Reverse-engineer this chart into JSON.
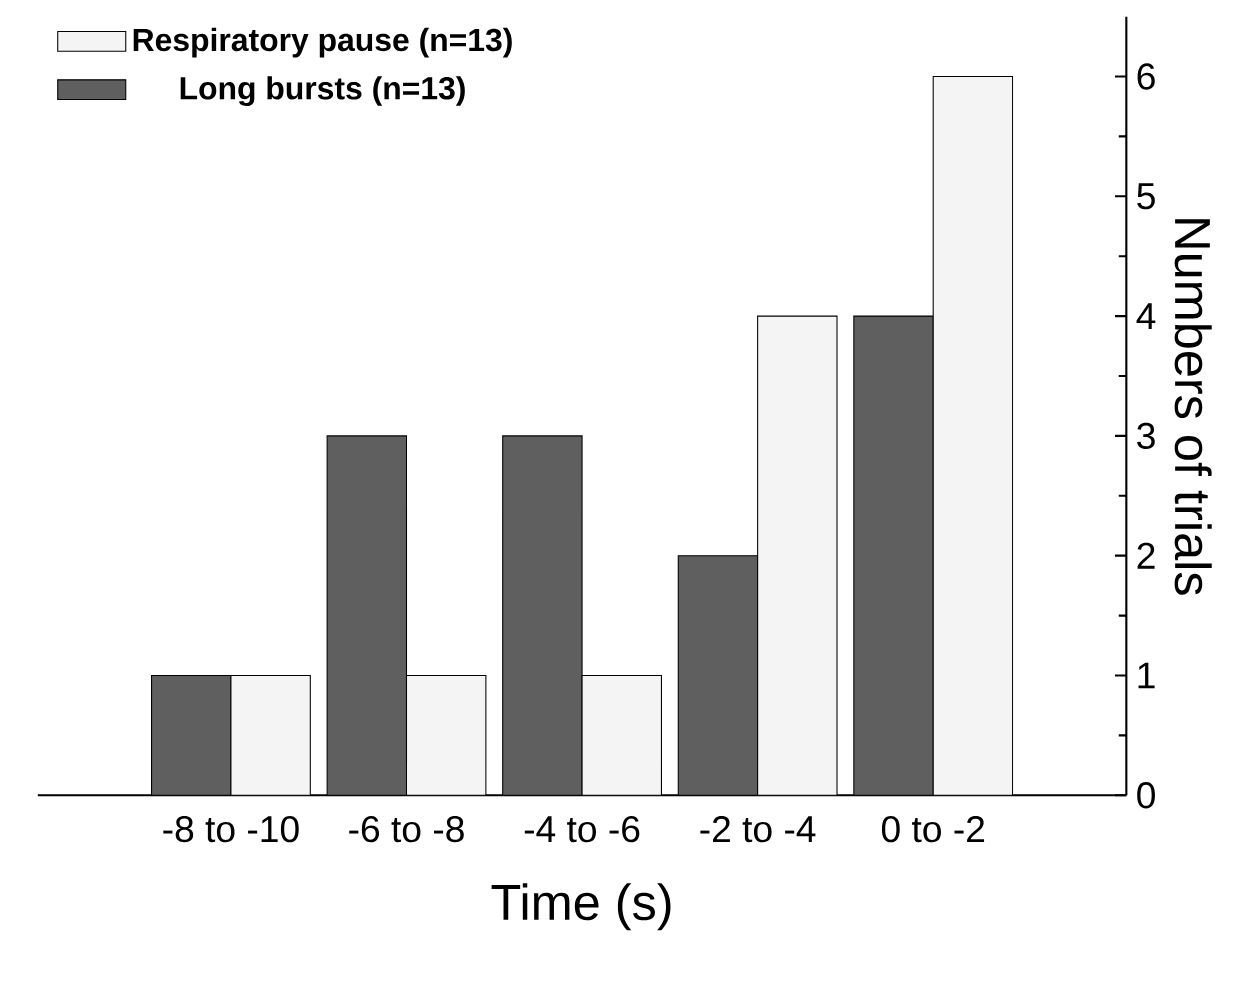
{
  "chart_data": {
    "type": "bar",
    "xlabel": "Time (s)",
    "ylabel": "Numbers of trials",
    "categories": [
      "-8 to -10",
      "-6 to -8",
      "-4 to -6",
      "-2 to -4",
      "0 to -2"
    ],
    "series": [
      {
        "name": "Long bursts (n=13)",
        "color": "#5f5f5f",
        "values": [
          1,
          3,
          3,
          2,
          4
        ]
      },
      {
        "name": "Respiratory pause (n=13)",
        "color": "#f4f4f4",
        "values": [
          1,
          1,
          1,
          4,
          6
        ]
      }
    ],
    "ylim": [
      0,
      6.5
    ],
    "yticks": [
      0,
      1,
      2,
      3,
      4,
      5,
      6
    ],
    "grid": false,
    "legend": "top left"
  }
}
